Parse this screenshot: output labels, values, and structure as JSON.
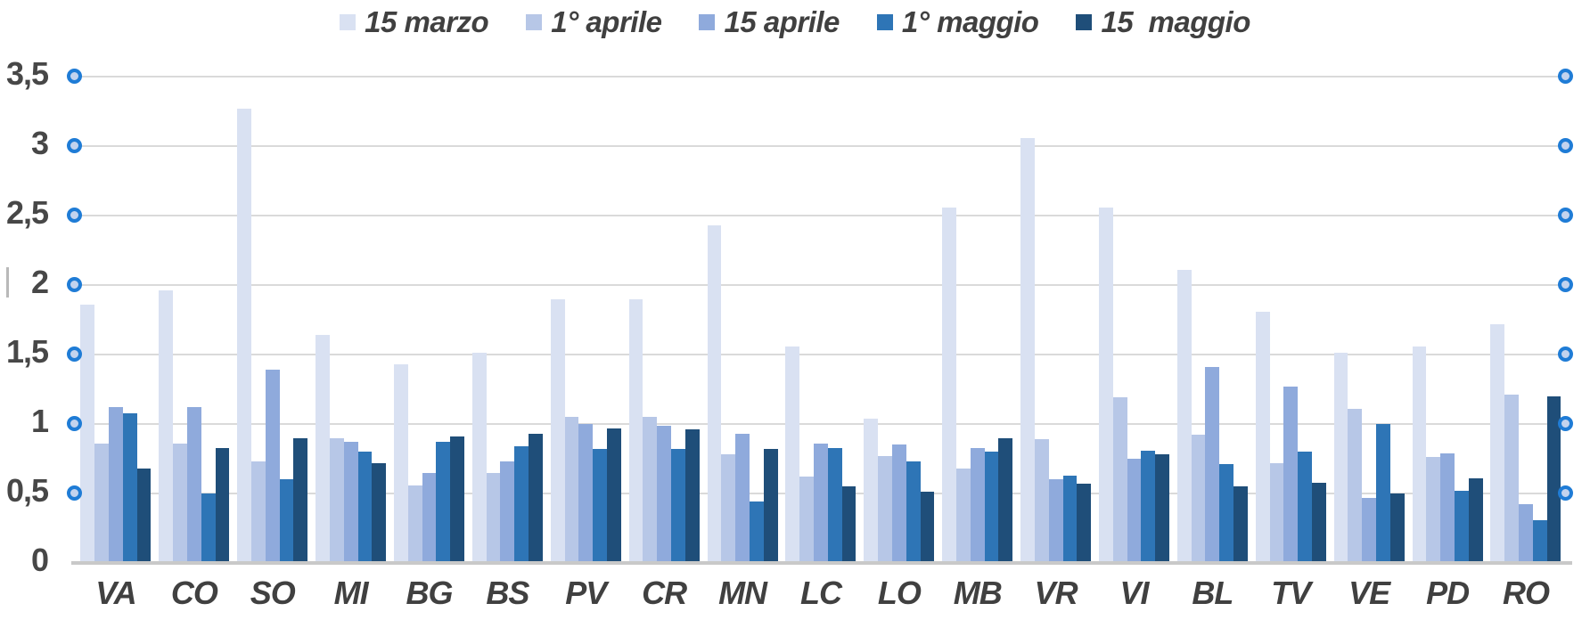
{
  "chart": {
    "background": "#FFFFFF",
    "text_color": "#404040",
    "gridline_color": "#DADADA",
    "axis_line_color": "#C9C9C9",
    "marker": {
      "ring_color": "#1F7CD6",
      "fill_color": "#C3D3EE"
    }
  },
  "chart_data": {
    "type": "bar",
    "title": "",
    "xlabel": "",
    "ylabel": "",
    "categories": [
      "VA",
      "CO",
      "SO",
      "MI",
      "BG",
      "BS",
      "PV",
      "CR",
      "MN",
      "LC",
      "LO",
      "MB",
      "VR",
      "VI",
      "BL",
      "TV",
      "VE",
      "PD",
      "RO"
    ],
    "series": [
      {
        "name": "15 marzo",
        "color": "#D9E1F2",
        "values": [
          1.86,
          1.96,
          3.27,
          1.64,
          1.43,
          1.51,
          1.9,
          1.9,
          2.43,
          1.56,
          1.04,
          2.56,
          3.06,
          2.56,
          2.11,
          1.81,
          1.51,
          1.56,
          1.72
        ]
      },
      {
        "name": "1° aprile",
        "color": "#B7C7E7",
        "values": [
          0.86,
          0.86,
          0.73,
          0.9,
          0.56,
          0.65,
          1.05,
          1.05,
          0.78,
          0.62,
          0.77,
          0.68,
          0.89,
          1.19,
          0.92,
          0.72,
          1.11,
          0.76,
          1.21
        ]
      },
      {
        "name": "15 aprile",
        "color": "#8FAADC",
        "values": [
          1.12,
          1.12,
          1.39,
          0.87,
          0.65,
          0.73,
          1.0,
          0.99,
          0.93,
          0.86,
          0.85,
          0.83,
          0.6,
          0.75,
          1.41,
          1.27,
          0.47,
          0.79,
          0.42
        ]
      },
      {
        "name": "1° maggio",
        "color": "#2E75B6",
        "values": [
          1.08,
          0.5,
          0.6,
          0.8,
          0.87,
          0.84,
          0.82,
          0.82,
          0.44,
          0.83,
          0.73,
          0.8,
          0.63,
          0.81,
          0.71,
          0.8,
          1.0,
          0.52,
          0.31
        ]
      },
      {
        "name": "15  maggio",
        "color": "#1F4E79",
        "values": [
          0.68,
          0.83,
          0.9,
          0.72,
          0.91,
          0.93,
          0.97,
          0.96,
          0.82,
          0.55,
          0.51,
          0.9,
          0.57,
          0.78,
          0.55,
          0.58,
          0.5,
          0.61,
          1.2
        ]
      }
    ],
    "y_axis": {
      "min": 0,
      "max": 3.5,
      "ticks": [
        {
          "label": "3,5",
          "value": 3.5
        },
        {
          "label": "3",
          "value": 3.0
        },
        {
          "label": "2,5",
          "value": 2.5
        },
        {
          "label": "2",
          "value": 2.0
        },
        {
          "label": "1,5",
          "value": 1.5
        },
        {
          "label": "1",
          "value": 1.0
        },
        {
          "label": "0,5",
          "value": 0.5
        },
        {
          "label": "0",
          "value": 0.0
        }
      ]
    },
    "grid": true,
    "legend_position": "top"
  }
}
